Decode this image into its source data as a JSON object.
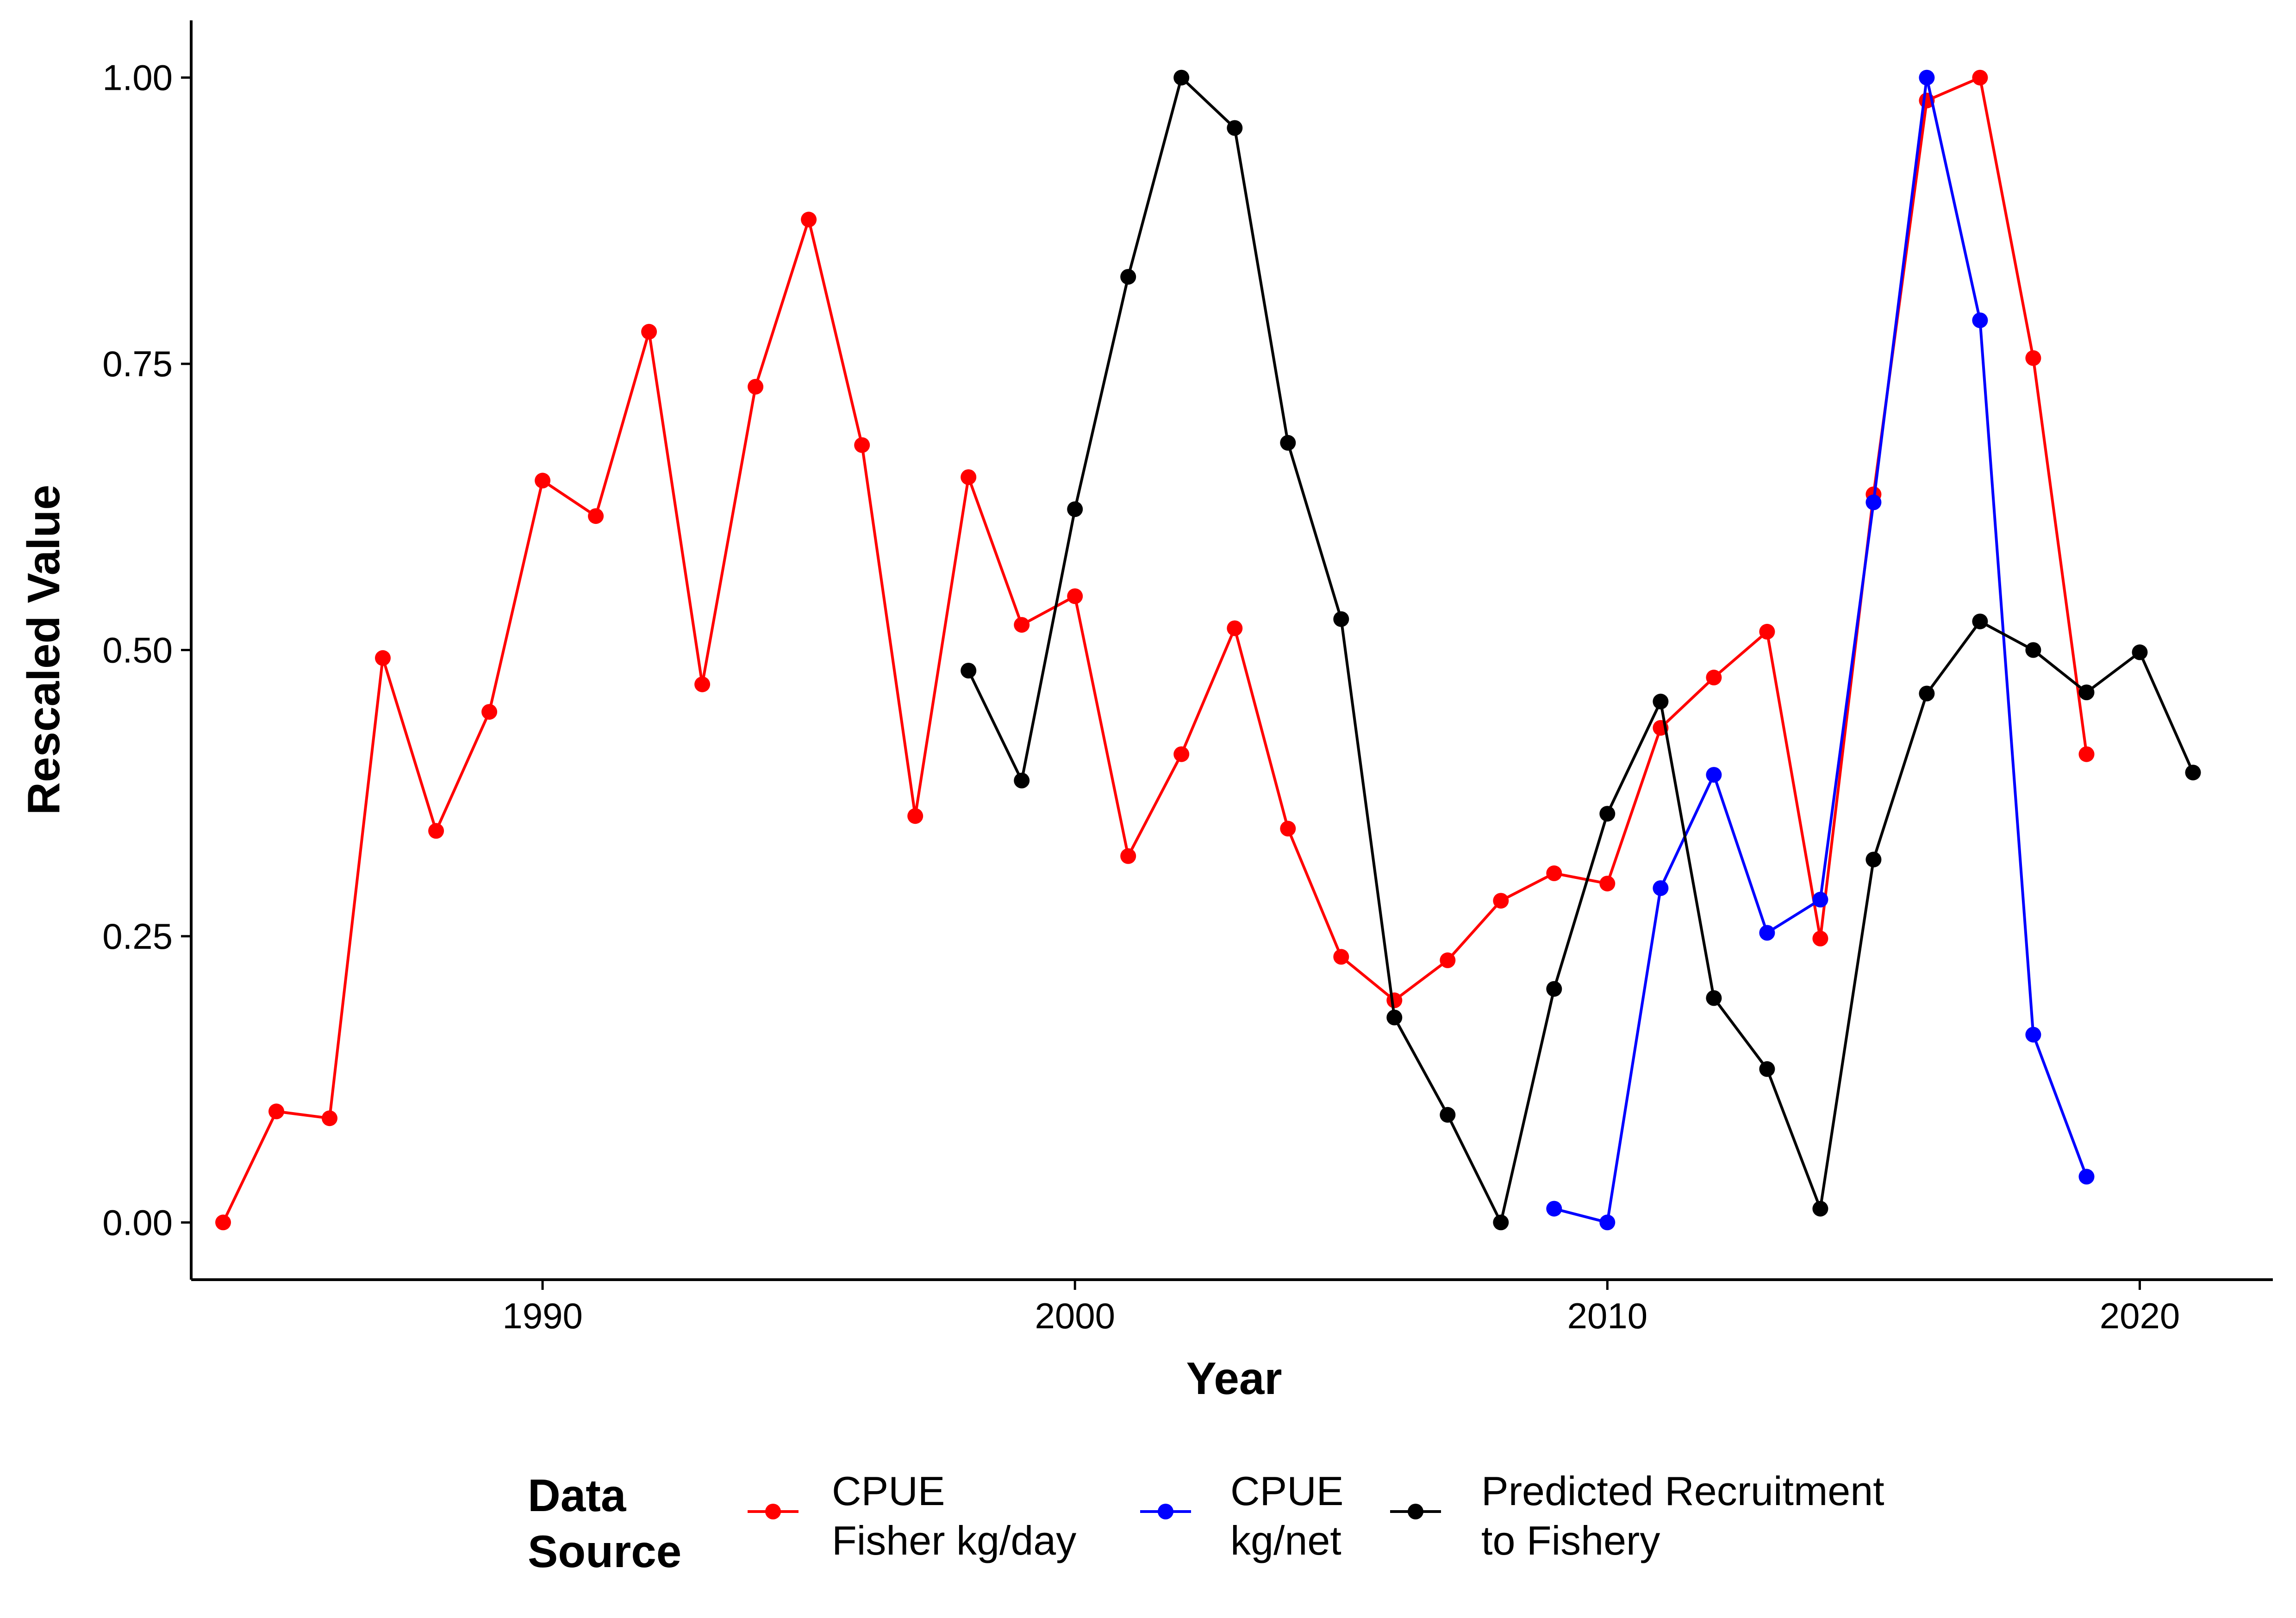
{
  "chart_data": {
    "type": "line",
    "title": "",
    "xlabel": "Year",
    "ylabel": "Rescaled Value",
    "xlim": [
      1983.4,
      2022.5
    ],
    "ylim": [
      -0.05,
      1.05
    ],
    "x_ticks": [
      1990,
      2000,
      2010,
      2020
    ],
    "y_ticks": [
      0.0,
      0.25,
      0.5,
      0.75,
      1.0
    ],
    "y_tick_labels": [
      "0.00",
      "0.25",
      "0.50",
      "0.75",
      "1.00"
    ],
    "grid": false,
    "legend": {
      "position": "bottom",
      "title_lines": [
        "Data",
        "Source"
      ]
    },
    "series": [
      {
        "name": "CPUE Fisher kg/day",
        "label_lines": [
          "CPUE",
          "Fisher kg/day"
        ],
        "color": "#ff0000",
        "x": [
          1984,
          1985,
          1986,
          1987,
          1988,
          1989,
          1990,
          1991,
          1992,
          1993,
          1994,
          1995,
          1996,
          1997,
          1998,
          1999,
          2000,
          2001,
          2002,
          2003,
          2004,
          2005,
          2006,
          2007,
          2008,
          2009,
          2010,
          2011,
          2012,
          2013,
          2014,
          2015,
          2016,
          2017,
          2018,
          2019
        ],
        "y": [
          0.0,
          0.097,
          0.091,
          0.493,
          0.342,
          0.446,
          0.648,
          0.617,
          0.778,
          0.47,
          0.73,
          0.876,
          0.679,
          0.355,
          0.651,
          0.522,
          0.547,
          0.32,
          0.409,
          0.519,
          0.344,
          0.232,
          0.194,
          0.229,
          0.281,
          0.305,
          0.296,
          0.432,
          0.476,
          0.516,
          0.248,
          0.636,
          0.98,
          1.0,
          0.755,
          0.409
        ]
      },
      {
        "name": "CPUE kg/net",
        "label_lines": [
          "CPUE",
          "kg/net"
        ],
        "color": "#0000ff",
        "x": [
          2009,
          2010,
          2011,
          2012,
          2013,
          2014,
          2015,
          2016,
          2017,
          2018,
          2019
        ],
        "y": [
          0.012,
          0.0,
          0.292,
          0.391,
          0.253,
          0.282,
          0.629,
          1.0,
          0.788,
          0.164,
          0.04
        ]
      },
      {
        "name": "Predicted Recruitment to Fishery",
        "label_lines": [
          "Predicted Recruitment",
          "to Fishery"
        ],
        "color": "#000000",
        "x": [
          1998,
          1999,
          2000,
          2001,
          2002,
          2003,
          2004,
          2005,
          2006,
          2007,
          2008,
          2009,
          2010,
          2011,
          2012,
          2013,
          2014,
          2015,
          2016,
          2017,
          2018,
          2019,
          2020,
          2021
        ],
        "y": [
          0.482,
          0.386,
          0.623,
          0.826,
          1.0,
          0.956,
          0.681,
          0.527,
          0.179,
          0.094,
          0.0,
          0.204,
          0.357,
          0.455,
          0.196,
          0.134,
          0.012,
          0.317,
          0.462,
          0.525,
          0.5,
          0.463,
          0.498,
          0.393
        ]
      }
    ]
  }
}
